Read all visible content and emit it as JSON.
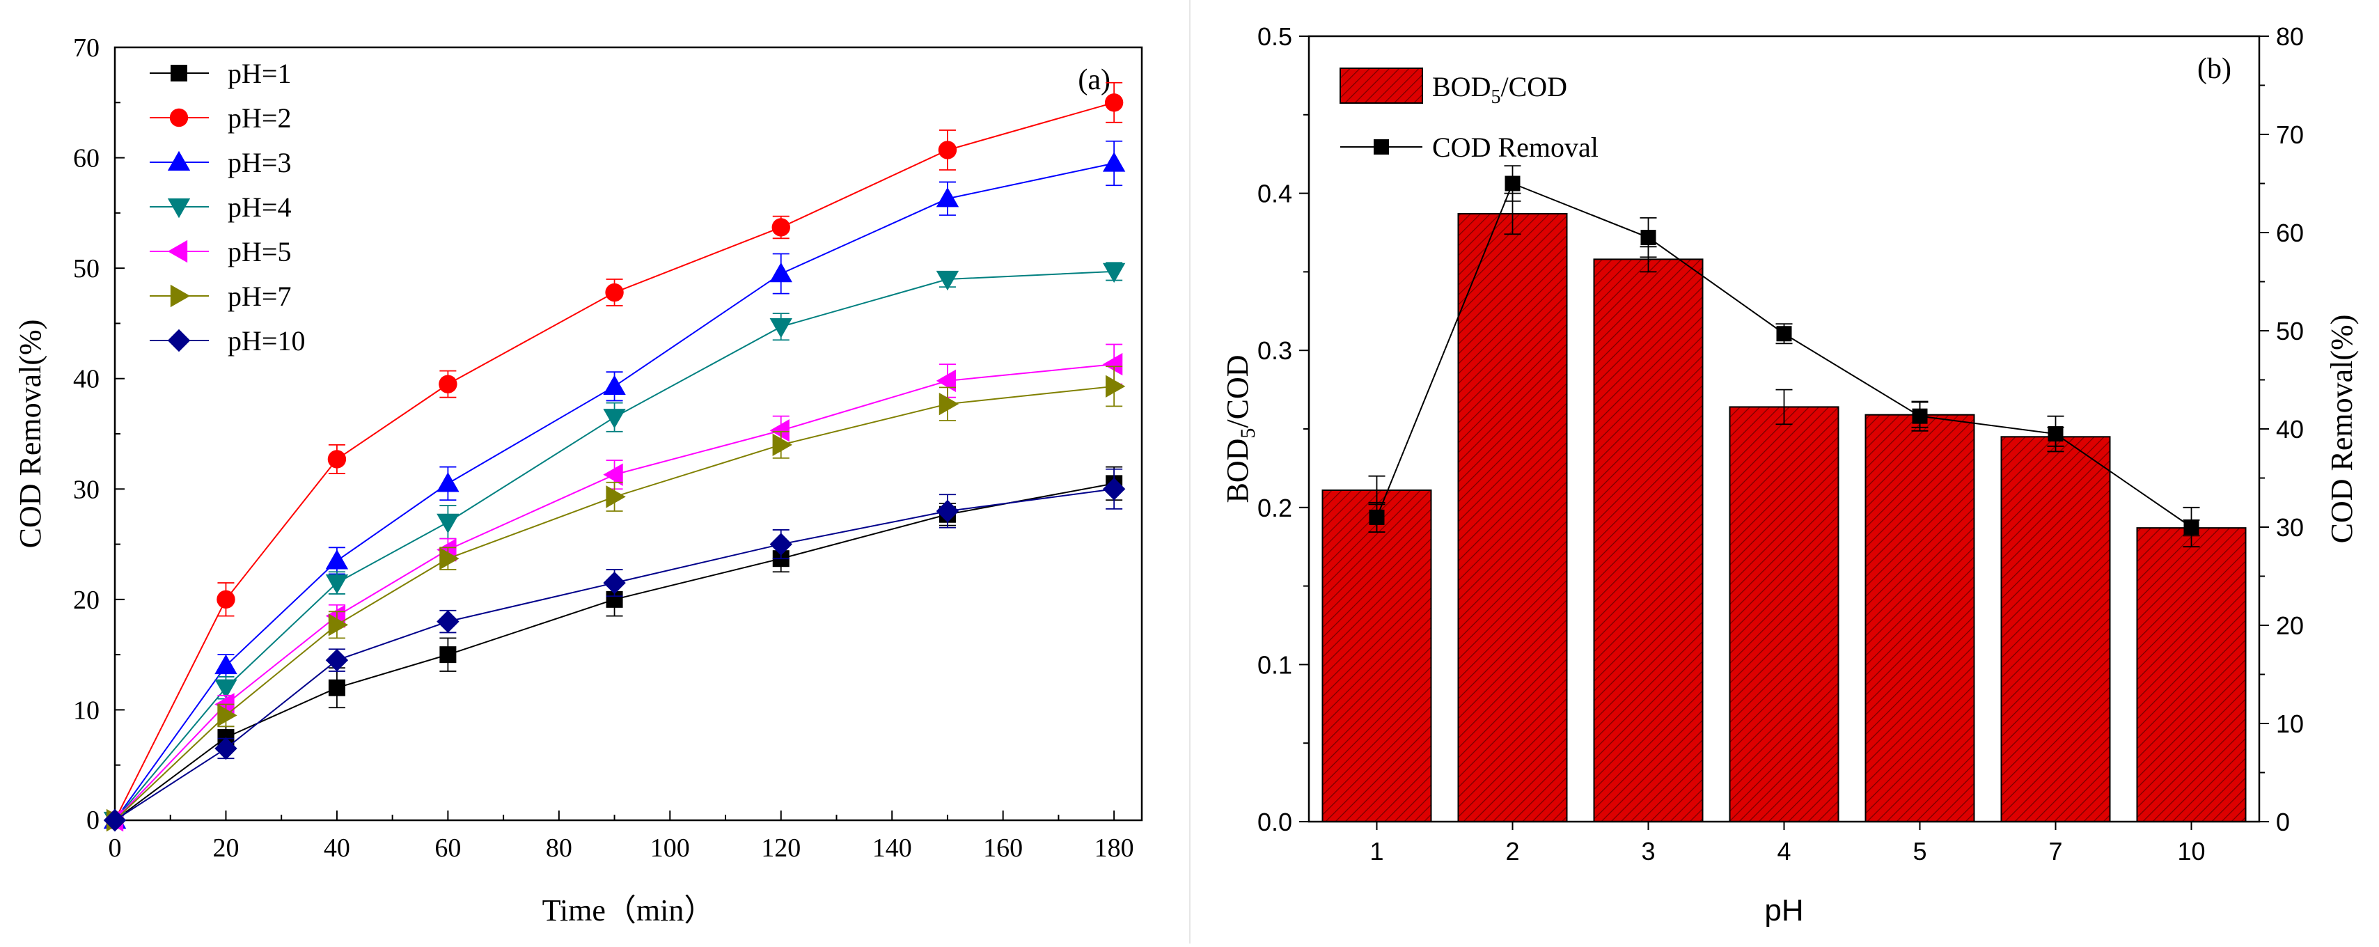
{
  "chart_data": [
    {
      "panel": "(a)",
      "type": "line",
      "xlabel": "Time（min）",
      "ylabel": "COD Removal(%)",
      "xlim": [
        0,
        185
      ],
      "ylim": [
        0,
        70
      ],
      "xticks": [
        0,
        20,
        40,
        60,
        80,
        100,
        120,
        140,
        160,
        180
      ],
      "yticks": [
        10,
        20,
        30,
        40,
        50,
        60,
        70
      ],
      "x": [
        0,
        20,
        40,
        60,
        90,
        120,
        150,
        180
      ],
      "legend_position": "top-left",
      "series": [
        {
          "name": "pH=1",
          "marker": "square",
          "color": "#000000",
          "values": [
            0,
            7.5,
            12.0,
            15.0,
            20.0,
            23.7,
            27.7,
            30.5
          ],
          "errors": [
            0,
            1.0,
            1.8,
            1.5,
            1.5,
            1.2,
            1.0,
            1.5
          ]
        },
        {
          "name": "pH=2",
          "marker": "circle",
          "color": "#ff0000",
          "values": [
            0,
            20.0,
            32.7,
            39.5,
            47.8,
            53.7,
            60.7,
            65.0
          ],
          "errors": [
            0,
            1.5,
            1.3,
            1.2,
            1.2,
            1.0,
            1.8,
            1.8
          ]
        },
        {
          "name": "pH=3",
          "marker": "triangle-up",
          "color": "#0000ff",
          "values": [
            0,
            14.0,
            23.5,
            30.5,
            39.3,
            49.5,
            56.3,
            59.5
          ],
          "errors": [
            0,
            1.0,
            1.2,
            1.5,
            1.3,
            1.8,
            1.5,
            2.0
          ]
        },
        {
          "name": "pH=4",
          "marker": "triangle-down",
          "color": "#008080",
          "values": [
            0,
            12.0,
            21.5,
            27.0,
            36.5,
            44.7,
            49.0,
            49.7
          ],
          "errors": [
            0,
            1.0,
            1.0,
            1.5,
            1.3,
            1.2,
            0.7,
            0.8
          ]
        },
        {
          "name": "pH=5",
          "marker": "triangle-left",
          "color": "#ff00ff",
          "values": [
            0,
            10.5,
            18.5,
            24.5,
            31.3,
            35.3,
            39.8,
            41.3
          ],
          "errors": [
            0,
            0.8,
            1.0,
            1.0,
            1.3,
            1.3,
            1.5,
            1.8
          ]
        },
        {
          "name": "pH=7",
          "marker": "triangle-right",
          "color": "#808000",
          "values": [
            0,
            9.5,
            17.7,
            23.7,
            29.3,
            34.0,
            37.7,
            39.3
          ],
          "errors": [
            0,
            1.0,
            1.2,
            1.0,
            1.3,
            1.2,
            1.5,
            1.8
          ]
        },
        {
          "name": "pH=10",
          "marker": "diamond",
          "color": "#00008b",
          "values": [
            0,
            6.5,
            14.5,
            18.0,
            21.5,
            25.0,
            28.0,
            30.0
          ],
          "errors": [
            0,
            0.9,
            1.0,
            1.0,
            1.2,
            1.3,
            1.5,
            1.8
          ]
        }
      ]
    },
    {
      "panel": "(b)",
      "type": "bar",
      "xlabel": "pH",
      "ylabel": "BOD5/COD",
      "ylabel_right": "COD Removal(%)",
      "categories": [
        "1",
        "2",
        "3",
        "4",
        "5",
        "7",
        "10"
      ],
      "ylim": [
        0,
        0.5
      ],
      "ylim_right": [
        0,
        80
      ],
      "yticks": [
        "0.0",
        "0.1",
        "0.2",
        "0.3",
        "0.4",
        "0.5"
      ],
      "yticks_right": [
        "0",
        "10",
        "20",
        "30",
        "40",
        "50",
        "60",
        "70",
        "80"
      ],
      "legend_position": "top-left",
      "series": [
        {
          "name": "BOD5/COD",
          "type": "bar",
          "color": "#dd0000",
          "values": [
            0.211,
            0.387,
            0.358,
            0.264,
            0.259,
            0.245,
            0.187
          ],
          "errors": [
            0.009,
            0.013,
            0.008,
            0.011,
            0.008,
            0.006,
            0.005
          ]
        },
        {
          "name": "COD Removal",
          "type": "line",
          "marker": "square",
          "color": "#000000",
          "axis": "right",
          "values": [
            31.0,
            65.0,
            59.5,
            49.7,
            41.3,
            39.5,
            30.0
          ],
          "errors": [
            1.5,
            1.8,
            2.0,
            1.0,
            1.5,
            1.8,
            2.0
          ]
        }
      ],
      "legend": [
        {
          "text": "BOD",
          "sub": "5",
          "after": "/COD"
        },
        {
          "text": "COD Removal"
        }
      ]
    }
  ]
}
